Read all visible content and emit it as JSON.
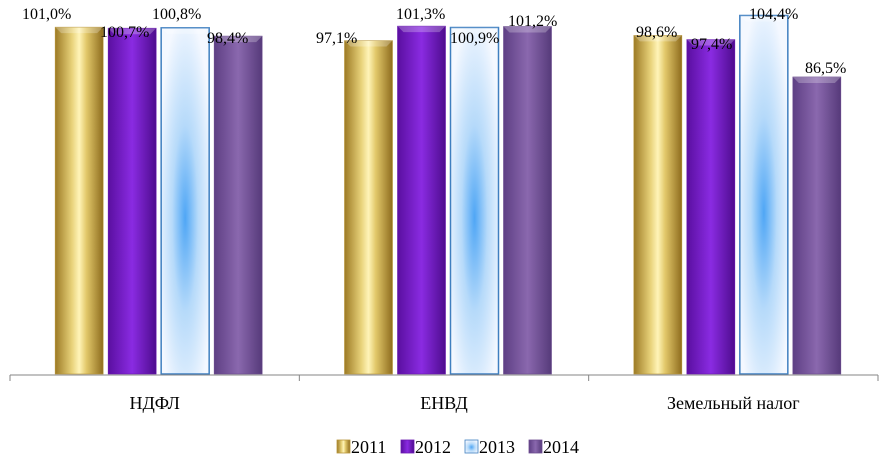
{
  "chart_data": {
    "type": "bar",
    "categories": [
      "НДФЛ",
      "ЕНВД",
      "Земельный налог"
    ],
    "series": [
      {
        "name": "2011",
        "values": [
          101.0,
          97.1,
          98.6
        ],
        "labels": [
          "101,0%",
          "97,1%",
          "98,6%"
        ],
        "color": "#C9A84A"
      },
      {
        "name": "2012",
        "values": [
          100.7,
          101.3,
          97.4
        ],
        "labels": [
          "100,7%",
          "101,3%",
          "97,4%"
        ],
        "color": "#7A1FC8"
      },
      {
        "name": "2013",
        "values": [
          100.8,
          100.9,
          104.4
        ],
        "labels": [
          "100,8%",
          "100,9%",
          "104,4%"
        ],
        "color": "#6FB2F0"
      },
      {
        "name": "2014",
        "values": [
          98.4,
          101.2,
          86.5
        ],
        "labels": [
          "98,4%",
          "101,2%",
          "86,5%"
        ],
        "color": "#7B5A9E"
      }
    ],
    "ylim": [
      0,
      106
    ],
    "grid": false,
    "legend_position": "bottom"
  }
}
